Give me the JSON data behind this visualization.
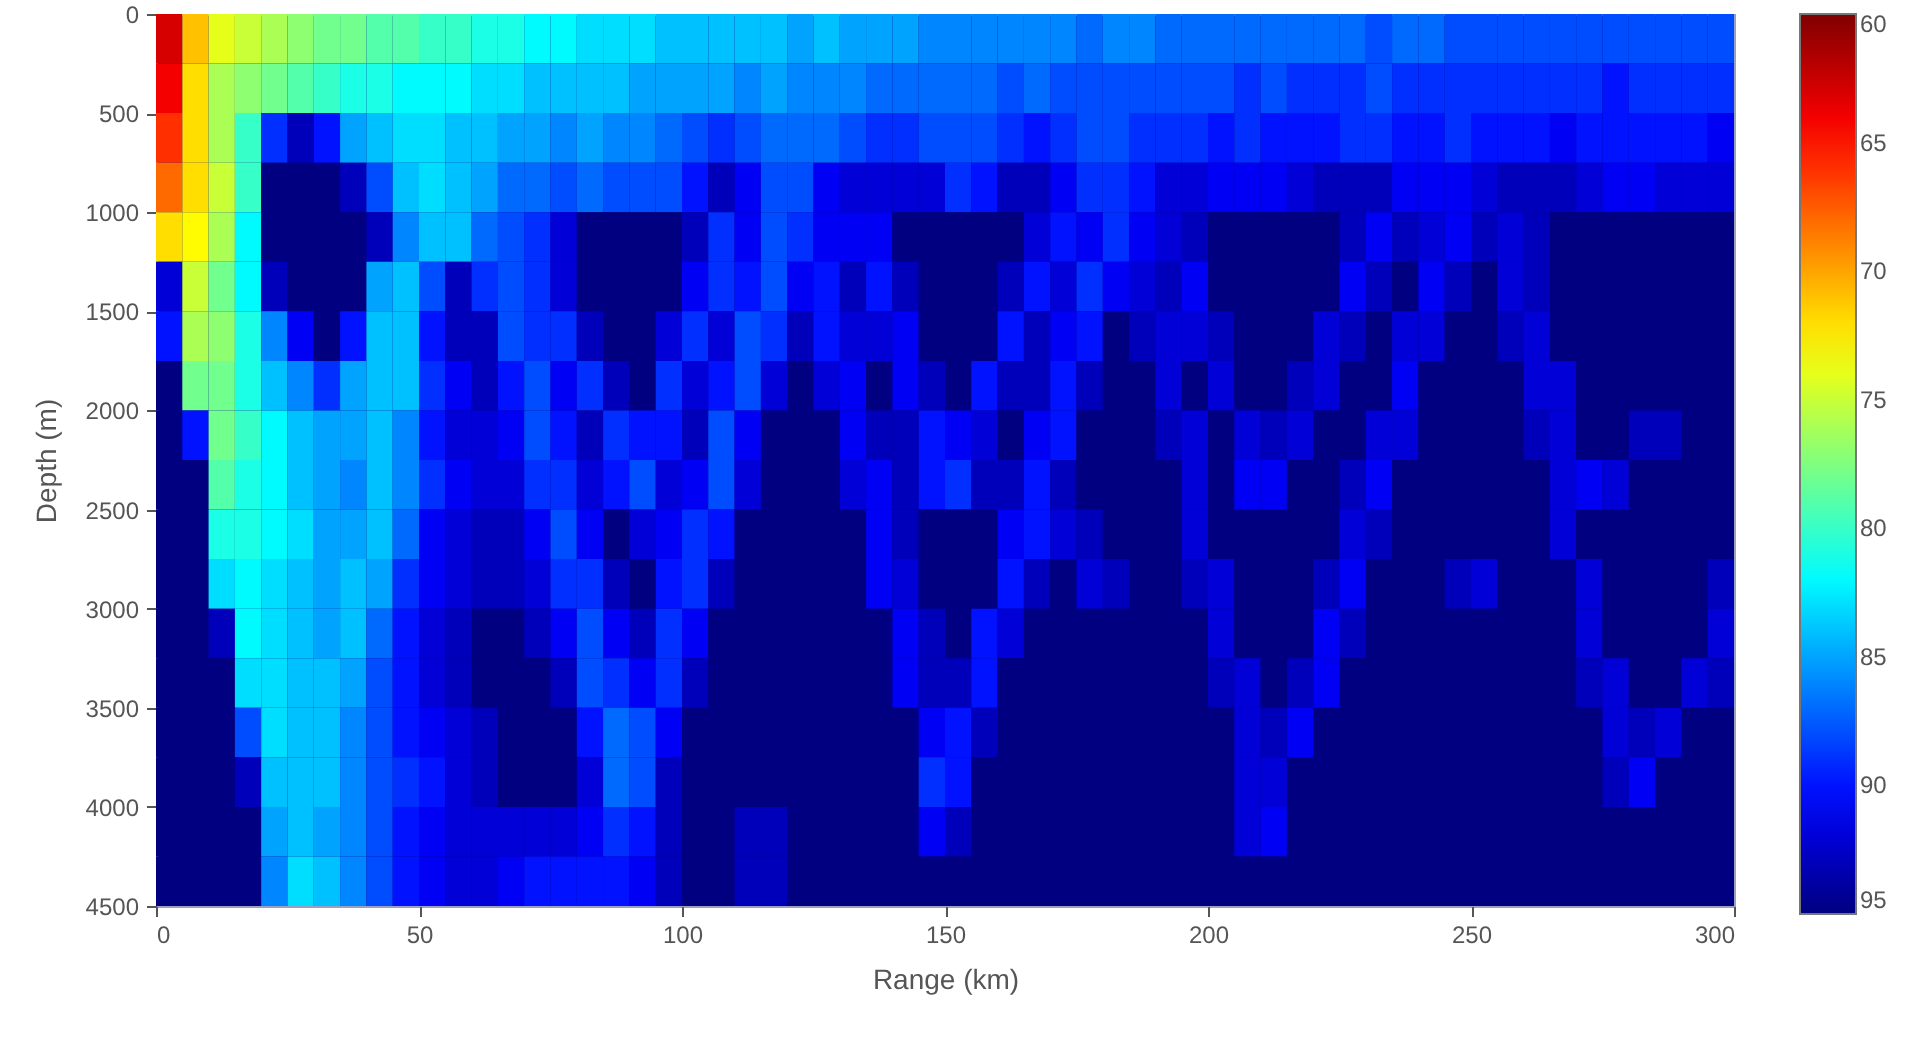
{
  "chart_data": {
    "type": "heatmap",
    "xlabel": "Range (km)",
    "ylabel": "Depth (m)",
    "x": [
      2.5,
      7.5,
      12.5,
      17.5,
      22.5,
      27.5,
      32.5,
      37.5,
      42.5,
      47.5,
      52.5,
      57.5,
      62.5,
      67.5,
      72.5,
      77.5,
      82.5,
      87.5,
      92.5,
      97.5,
      102.5,
      107.5,
      112.5,
      117.5,
      122.5,
      127.5,
      132.5,
      137.5,
      142.5,
      147.5,
      152.5,
      157.5,
      162.5,
      167.5,
      172.5,
      177.5,
      182.5,
      187.5,
      192.5,
      197.5,
      202.5,
      207.5,
      212.5,
      217.5,
      222.5,
      227.5,
      232.5,
      237.5,
      242.5,
      247.5,
      252.5,
      257.5,
      262.5,
      267.5,
      272.5,
      277.5,
      282.5,
      287.5,
      292.5,
      297.5
    ],
    "y": [
      125,
      375,
      625,
      875,
      1125,
      1375,
      1625,
      1875,
      2125,
      2375,
      2625,
      2875,
      3125,
      3375,
      3625,
      3875,
      4125,
      4375
    ],
    "cells": [
      [
        63,
        71,
        74,
        75,
        76,
        77,
        78,
        78,
        79,
        79,
        80,
        80,
        81,
        81,
        82,
        82,
        83,
        83,
        83,
        84,
        84,
        84,
        84,
        84,
        85,
        84,
        85,
        85,
        85,
        86,
        86,
        86,
        86,
        86,
        86,
        87,
        86,
        86,
        87,
        87,
        87,
        87,
        87,
        87,
        87,
        87,
        88,
        87,
        87,
        88,
        88,
        88,
        88,
        88,
        88,
        88,
        88,
        88,
        88,
        88
      ],
      [
        64,
        72,
        76,
        77,
        78,
        79,
        80,
        81,
        81,
        82,
        82,
        82,
        83,
        83,
        84,
        84,
        84,
        84,
        85,
        85,
        85,
        85,
        86,
        85,
        86,
        86,
        86,
        87,
        87,
        87,
        87,
        87,
        88,
        87,
        88,
        88,
        88,
        88,
        88,
        88,
        88,
        89,
        88,
        89,
        89,
        89,
        88,
        89,
        89,
        89,
        89,
        89,
        89,
        89,
        89,
        90,
        89,
        89,
        89,
        89
      ],
      [
        66,
        72,
        76,
        80,
        89,
        93,
        90,
        85,
        84,
        83,
        83,
        84,
        84,
        85,
        85,
        86,
        85,
        86,
        86,
        87,
        88,
        89,
        88,
        87,
        87,
        87,
        88,
        89,
        89,
        88,
        88,
        88,
        89,
        90,
        89,
        88,
        88,
        89,
        89,
        89,
        90,
        89,
        90,
        90,
        90,
        89,
        89,
        90,
        90,
        89,
        90,
        90,
        90,
        91,
        90,
        90,
        90,
        90,
        90,
        91
      ],
      [
        68,
        72,
        75,
        80,
        95,
        95,
        95,
        93,
        88,
        84,
        83,
        84,
        85,
        87,
        87,
        88,
        87,
        88,
        88,
        88,
        90,
        93,
        91,
        88,
        88,
        91,
        92,
        92,
        92,
        92,
        89,
        90,
        93,
        93,
        91,
        89,
        89,
        90,
        92,
        92,
        91,
        91,
        91,
        92,
        93,
        93,
        93,
        91,
        91,
        91,
        92,
        93,
        93,
        93,
        92,
        91,
        91,
        92,
        92,
        92
      ],
      [
        72,
        73,
        76,
        82,
        95,
        95,
        95,
        95,
        93,
        86,
        84,
        84,
        87,
        88,
        89,
        92,
        95,
        95,
        95,
        95,
        93,
        89,
        91,
        88,
        89,
        91,
        91,
        91,
        95,
        95,
        95,
        95,
        95,
        92,
        90,
        91,
        89,
        91,
        92,
        93,
        95,
        95,
        95,
        95,
        95,
        93,
        91,
        93,
        92,
        91,
        93,
        92,
        93,
        95,
        95,
        95,
        95,
        95,
        95,
        95
      ],
      [
        92,
        75,
        78,
        82,
        93,
        95,
        95,
        95,
        85,
        84,
        88,
        93,
        89,
        88,
        89,
        92,
        95,
        95,
        95,
        95,
        91,
        89,
        90,
        88,
        91,
        90,
        93,
        90,
        93,
        95,
        95,
        95,
        93,
        90,
        92,
        89,
        91,
        92,
        93,
        91,
        95,
        95,
        95,
        95,
        95,
        91,
        93,
        95,
        91,
        93,
        95,
        92,
        93,
        95,
        95,
        95,
        95,
        95,
        95,
        95
      ],
      [
        90,
        76,
        77,
        81,
        86,
        91,
        95,
        90,
        84,
        84,
        90,
        93,
        93,
        88,
        89,
        89,
        93,
        95,
        95,
        92,
        89,
        92,
        88,
        89,
        93,
        90,
        92,
        92,
        91,
        95,
        95,
        95,
        90,
        93,
        91,
        90,
        95,
        93,
        92,
        92,
        93,
        95,
        95,
        95,
        92,
        93,
        95,
        92,
        92,
        95,
        95,
        93,
        92,
        95,
        95,
        95,
        95,
        95,
        95,
        95
      ],
      [
        95,
        78,
        78,
        81,
        84,
        86,
        89,
        85,
        84,
        84,
        89,
        91,
        93,
        90,
        88,
        91,
        89,
        93,
        95,
        89,
        92,
        90,
        88,
        92,
        95,
        92,
        91,
        95,
        91,
        93,
        95,
        90,
        93,
        93,
        90,
        93,
        95,
        95,
        92,
        95,
        92,
        95,
        95,
        93,
        92,
        95,
        95,
        91,
        95,
        95,
        95,
        95,
        92,
        92,
        95,
        95,
        95,
        95,
        95,
        95
      ],
      [
        95,
        90,
        78,
        80,
        82,
        84,
        85,
        85,
        84,
        86,
        90,
        92,
        92,
        91,
        88,
        90,
        93,
        89,
        90,
        90,
        93,
        88,
        91,
        95,
        95,
        95,
        91,
        93,
        93,
        90,
        91,
        92,
        95,
        91,
        90,
        95,
        95,
        95,
        93,
        92,
        95,
        92,
        93,
        92,
        95,
        95,
        92,
        92,
        95,
        95,
        95,
        95,
        93,
        92,
        95,
        95,
        93,
        93,
        95,
        95
      ],
      [
        95,
        95,
        79,
        81,
        82,
        84,
        85,
        86,
        84,
        86,
        89,
        91,
        92,
        92,
        89,
        89,
        92,
        90,
        88,
        92,
        91,
        88,
        92,
        95,
        95,
        95,
        92,
        91,
        93,
        90,
        89,
        93,
        93,
        90,
        93,
        95,
        95,
        95,
        95,
        92,
        95,
        91,
        91,
        95,
        95,
        93,
        91,
        95,
        95,
        95,
        95,
        95,
        95,
        92,
        91,
        92,
        95,
        95,
        95,
        95
      ],
      [
        95,
        95,
        81,
        81,
        82,
        83,
        85,
        85,
        84,
        87,
        91,
        92,
        93,
        93,
        91,
        88,
        91,
        95,
        92,
        91,
        89,
        90,
        95,
        95,
        95,
        95,
        95,
        91,
        93,
        95,
        95,
        95,
        91,
        90,
        92,
        93,
        95,
        95,
        95,
        92,
        95,
        95,
        95,
        95,
        95,
        92,
        93,
        95,
        95,
        95,
        95,
        95,
        95,
        92,
        95,
        95,
        95,
        95,
        95,
        95
      ],
      [
        95,
        95,
        83,
        82,
        83,
        84,
        85,
        84,
        85,
        89,
        91,
        92,
        93,
        93,
        92,
        89,
        89,
        93,
        95,
        90,
        89,
        93,
        95,
        95,
        95,
        95,
        95,
        91,
        92,
        95,
        95,
        95,
        90,
        93,
        95,
        92,
        93,
        95,
        95,
        93,
        92,
        95,
        95,
        95,
        93,
        91,
        95,
        95,
        95,
        93,
        92,
        95,
        95,
        95,
        92,
        95,
        95,
        95,
        95,
        93
      ],
      [
        95,
        95,
        93,
        82,
        83,
        84,
        85,
        84,
        87,
        90,
        92,
        93,
        95,
        95,
        93,
        91,
        88,
        91,
        93,
        89,
        91,
        95,
        95,
        95,
        95,
        95,
        95,
        95,
        91,
        93,
        95,
        90,
        92,
        95,
        95,
        95,
        95,
        95,
        95,
        95,
        92,
        95,
        95,
        95,
        91,
        93,
        95,
        95,
        95,
        95,
        95,
        95,
        95,
        95,
        92,
        95,
        95,
        95,
        95,
        92
      ],
      [
        95,
        95,
        95,
        83,
        83,
        84,
        84,
        85,
        88,
        90,
        92,
        93,
        95,
        95,
        95,
        93,
        88,
        89,
        91,
        89,
        93,
        95,
        95,
        95,
        95,
        95,
        95,
        95,
        91,
        93,
        93,
        90,
        95,
        95,
        95,
        95,
        95,
        95,
        95,
        95,
        93,
        92,
        95,
        93,
        91,
        95,
        95,
        95,
        95,
        95,
        95,
        95,
        95,
        95,
        93,
        92,
        95,
        95,
        92,
        93
      ],
      [
        95,
        95,
        95,
        88,
        83,
        84,
        84,
        86,
        88,
        90,
        91,
        92,
        93,
        95,
        95,
        95,
        90,
        87,
        88,
        91,
        95,
        95,
        95,
        95,
        95,
        95,
        95,
        95,
        95,
        91,
        90,
        93,
        95,
        95,
        95,
        95,
        95,
        95,
        95,
        95,
        95,
        92,
        93,
        91,
        95,
        95,
        95,
        95,
        95,
        95,
        95,
        95,
        95,
        95,
        95,
        92,
        93,
        92,
        95,
        95
      ],
      [
        95,
        95,
        95,
        93,
        84,
        84,
        84,
        86,
        88,
        89,
        90,
        92,
        93,
        95,
        95,
        95,
        92,
        87,
        88,
        93,
        95,
        95,
        95,
        95,
        95,
        95,
        95,
        95,
        95,
        89,
        90,
        95,
        95,
        95,
        95,
        95,
        95,
        95,
        95,
        95,
        95,
        92,
        92,
        95,
        95,
        95,
        95,
        95,
        95,
        95,
        95,
        95,
        95,
        95,
        95,
        93,
        91,
        95,
        95,
        95
      ],
      [
        95,
        95,
        95,
        95,
        85,
        84,
        85,
        86,
        88,
        90,
        91,
        92,
        92,
        92,
        92,
        92,
        91,
        89,
        90,
        93,
        95,
        95,
        93,
        93,
        95,
        95,
        95,
        95,
        95,
        91,
        93,
        95,
        95,
        95,
        95,
        95,
        95,
        95,
        95,
        95,
        95,
        92,
        91,
        95,
        95,
        95,
        95,
        95,
        95,
        95,
        95,
        95,
        95,
        95,
        95,
        95,
        95,
        95,
        95,
        95
      ],
      [
        95,
        95,
        95,
        95,
        86,
        83,
        84,
        86,
        88,
        90,
        91,
        92,
        92,
        91,
        90,
        90,
        90,
        90,
        91,
        93,
        95,
        95,
        93,
        93,
        95,
        95,
        95,
        95,
        95,
        95,
        95,
        95,
        95,
        95,
        95,
        95,
        95,
        95,
        95,
        95,
        95,
        95,
        95,
        95,
        95,
        95,
        95,
        95,
        95,
        95,
        95,
        95,
        95,
        95,
        95,
        95,
        95,
        95,
        95,
        95
      ]
    ],
    "xlim": [
      0,
      300
    ],
    "xticks": [
      0,
      50,
      100,
      150,
      200,
      250,
      300
    ],
    "ylim": [
      4500,
      0
    ],
    "yticks": [
      0,
      500,
      1000,
      1500,
      2000,
      2500,
      3000,
      3500,
      4000,
      4500
    ],
    "clim": [
      60,
      95
    ],
    "cticks": [
      60,
      65,
      70,
      75,
      80,
      85,
      90,
      95
    ]
  }
}
